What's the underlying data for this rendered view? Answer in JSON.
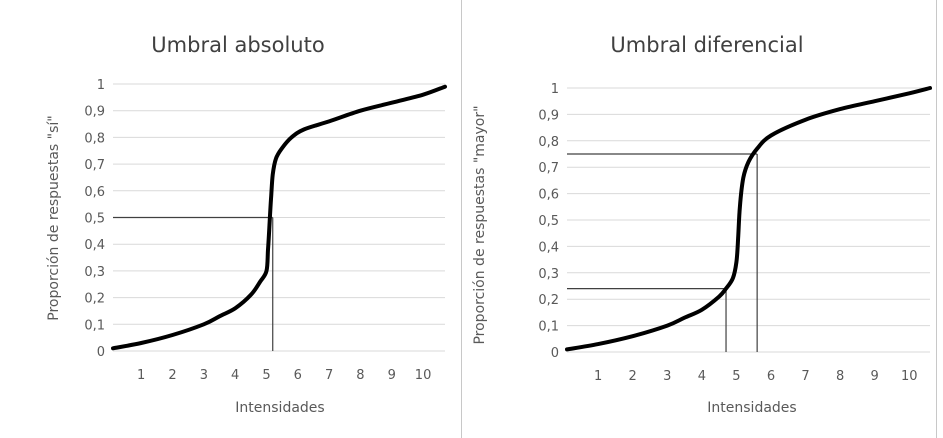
{
  "chart_data": [
    {
      "type": "line",
      "title": "Umbral absoluto",
      "xlabel": "Intensidades",
      "ylabel": "Proporción de respuestas \"sí\"",
      "x_ticks": [
        "1",
        "2",
        "3",
        "4",
        "5",
        "6",
        "7",
        "8",
        "9",
        "10"
      ],
      "y_ticks": [
        "0",
        "0,1",
        "0,2",
        "0,3",
        "0,4",
        "0,5",
        "0,6",
        "0,7",
        "0,8",
        "0,9",
        "1"
      ],
      "xlim": [
        0.1,
        10.7
      ],
      "ylim": [
        0,
        1
      ],
      "grid": true,
      "series": [
        {
          "x": [
            0.1,
            1.0,
            2.0,
            3.0,
            3.5,
            4.0,
            4.5,
            4.8,
            5.0,
            5.05,
            5.1,
            5.15,
            5.2,
            5.3,
            5.5,
            5.8,
            6.2,
            7.0,
            8.0,
            9.0,
            10.0,
            10.7
          ],
          "y": [
            0.01,
            0.03,
            0.06,
            0.1,
            0.13,
            0.16,
            0.21,
            0.26,
            0.3,
            0.38,
            0.48,
            0.58,
            0.66,
            0.72,
            0.76,
            0.8,
            0.83,
            0.86,
            0.9,
            0.93,
            0.96,
            0.99
          ]
        }
      ],
      "guides": [
        {
          "type": "hline",
          "y": 0.5,
          "x_from": 0.1,
          "x_to": 5.2
        },
        {
          "type": "vline",
          "x": 5.2,
          "y_from": 0,
          "y_to": 0.5
        }
      ]
    },
    {
      "type": "line",
      "title": "Umbral diferencial",
      "xlabel": "Intensidades",
      "ylabel": "Proporción de respuestas \"mayor\"",
      "x_ticks": [
        "1",
        "2",
        "3",
        "4",
        "5",
        "6",
        "7",
        "8",
        "9",
        "10"
      ],
      "y_ticks": [
        "0",
        "0,1",
        "0,2",
        "0,3",
        "0,4",
        "0,5",
        "0,6",
        "0,7",
        "0,8",
        "0,9",
        "1"
      ],
      "xlim": [
        0.1,
        10.6
      ],
      "ylim": [
        0,
        1
      ],
      "grid": true,
      "series": [
        {
          "x": [
            0.1,
            1.0,
            2.0,
            3.0,
            3.5,
            4.0,
            4.5,
            4.7,
            4.9,
            5.0,
            5.05,
            5.1,
            5.2,
            5.35,
            5.6,
            6.0,
            7.0,
            8.0,
            9.0,
            10.0,
            10.6
          ],
          "y": [
            0.01,
            0.03,
            0.06,
            0.1,
            0.13,
            0.16,
            0.21,
            0.24,
            0.28,
            0.34,
            0.43,
            0.55,
            0.66,
            0.72,
            0.77,
            0.82,
            0.88,
            0.92,
            0.95,
            0.98,
            1.0
          ]
        }
      ],
      "guides": [
        {
          "type": "hline",
          "y": 0.75,
          "x_from": 0.1,
          "x_to": 5.6
        },
        {
          "type": "vline",
          "x": 5.6,
          "y_from": 0,
          "y_to": 0.75
        },
        {
          "type": "hline",
          "y": 0.24,
          "x_from": 0.1,
          "x_to": 4.7
        },
        {
          "type": "vline",
          "x": 4.7,
          "y_from": 0,
          "y_to": 0.24
        }
      ]
    }
  ],
  "colors": {
    "curve": "#000000",
    "grid": "#d9d9d9",
    "guide": "#404040",
    "text": "#595959"
  }
}
